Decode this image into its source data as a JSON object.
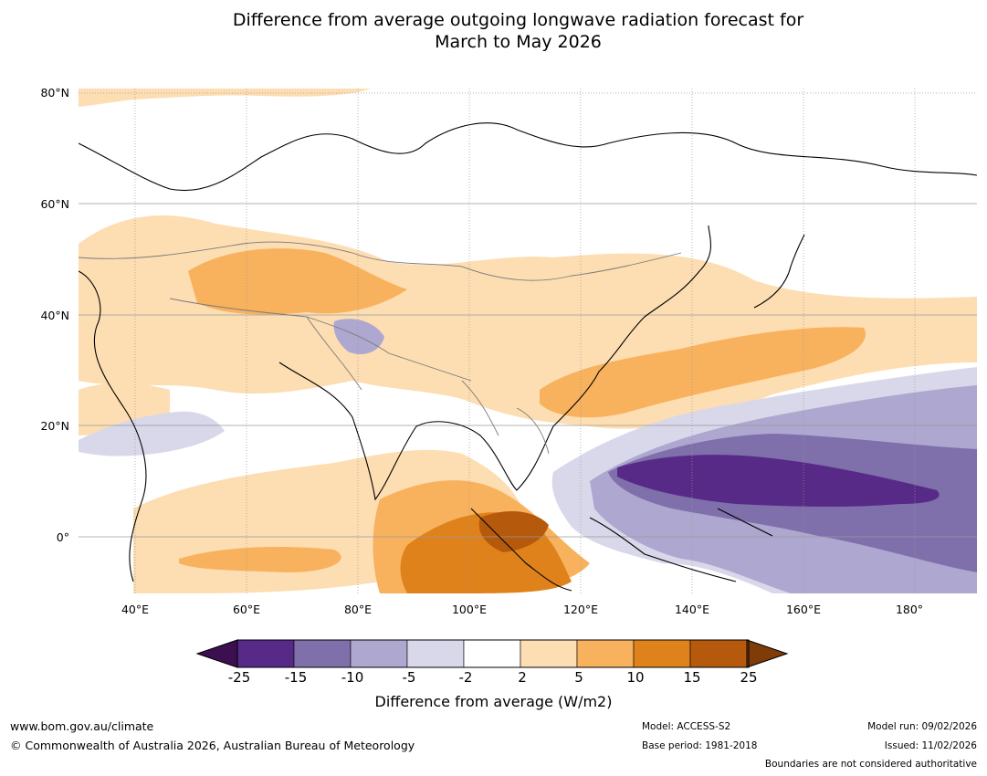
{
  "title": {
    "line1": "Difference from average outgoing longwave radiation forecast for",
    "line2": "March to May 2026"
  },
  "map": {
    "lat_labels": [
      "80°N",
      "60°N",
      "40°N",
      "20°N",
      "0°"
    ],
    "lon_labels": [
      "40°E",
      "60°E",
      "80°E",
      "100°E",
      "120°E",
      "140°E",
      "160°E",
      "180°"
    ],
    "extent": {
      "lon_min": 30,
      "lon_max": 191,
      "lat_min": -10,
      "lat_max": 81
    },
    "icon": "region-contour-map"
  },
  "colorbar": {
    "title": "Difference from average (W/m2)",
    "ticks": [
      "-25",
      "-15",
      "-10",
      "-5",
      "-2",
      "2",
      "5",
      "10",
      "15",
      "25"
    ],
    "colors": [
      "#3b0f50",
      "#582a87",
      "#7f6fab",
      "#aea7cf",
      "#d8d8ea",
      "#ffffff",
      "#fdddb2",
      "#f8b25d",
      "#e0821c",
      "#b5590c",
      "#7f3b08"
    ]
  },
  "footer": {
    "website": "www.bom.gov.au/climate",
    "copyright": "© Commonwealth of Australia 2026, Australian Bureau of Meteorology",
    "model": "Model: ACCESS-S2",
    "base_period": "Base period: 1981-2018",
    "model_run": "Model run: 09/02/2026",
    "issued": "Issued: 11/02/2026",
    "disclaimer": "Boundaries are not considered authoritative"
  }
}
